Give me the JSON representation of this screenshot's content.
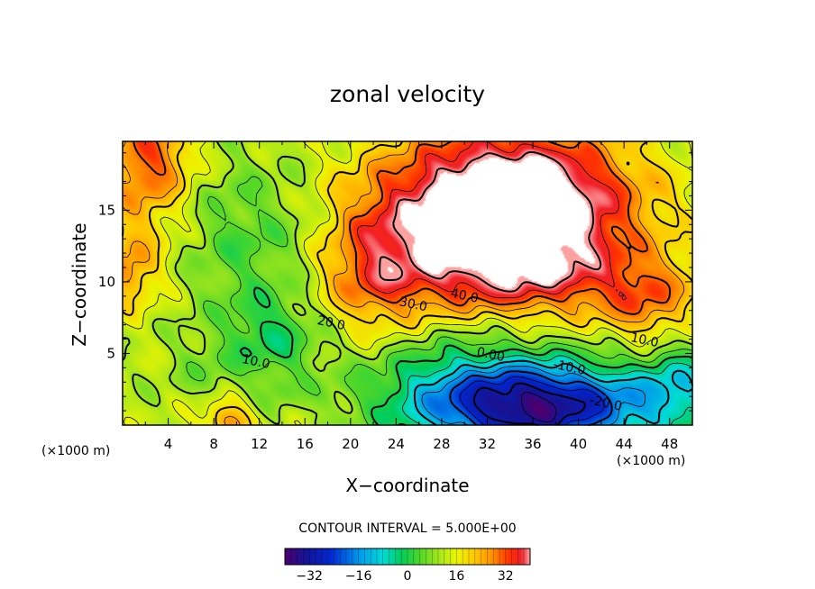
{
  "chart_data": {
    "type": "heatmap",
    "title": "zonal velocity",
    "xlabel": "X−coordinate",
    "ylabel": "Z−coordinate",
    "x_unit": "(×1000 m)",
    "y_unit": "(×1000 m)",
    "xlim": [
      0,
      50
    ],
    "ylim": [
      0,
      19.8
    ],
    "x_ticks": [
      4,
      8,
      12,
      16,
      20,
      24,
      28,
      32,
      36,
      40,
      44,
      48
    ],
    "y_ticks": [
      5,
      10,
      15
    ],
    "contour_interval_label": "CONTOUR INTERVAL =  5.000E+00",
    "contour_interval": 5,
    "value_range": [
      -40,
      40
    ],
    "colorbar_ticks": [
      -32,
      -16,
      0,
      16,
      32
    ],
    "contour_labels": [
      {
        "text": "40.0",
        "x": 30.0,
        "z": 9.0
      },
      {
        "text": "30.0",
        "x": 25.5,
        "z": 8.4
      },
      {
        "text": "20.0",
        "x": 18.3,
        "z": 7.1
      },
      {
        "text": "10.0",
        "x": 11.7,
        "z": 4.4
      },
      {
        "text": "10.0",
        "x": 45.8,
        "z": 5.9
      },
      {
        "text": "0.00",
        "x": 32.3,
        "z": 4.9
      },
      {
        "text": "-10.0",
        "x": 39.2,
        "z": 4.0
      },
      {
        "text": "-20.0",
        "x": 42.4,
        "z": 1.5
      }
    ],
    "features": [
      {
        "kind": "jet",
        "label": "upper-level westerly jet (>40, clipped)",
        "x": 33.8,
        "z": 14.5,
        "peak": 70
      },
      {
        "kind": "jet",
        "label": "low-level easterly core",
        "x": 35.8,
        "z": 1.0,
        "peak": -27
      },
      {
        "kind": "jet",
        "label": "left upper westerly",
        "x": 0.5,
        "z": 10.5,
        "peak": 28
      },
      {
        "kind": "jet",
        "label": "surface westerly blob",
        "x": 9.3,
        "z": 0.4,
        "peak": 26
      }
    ]
  }
}
